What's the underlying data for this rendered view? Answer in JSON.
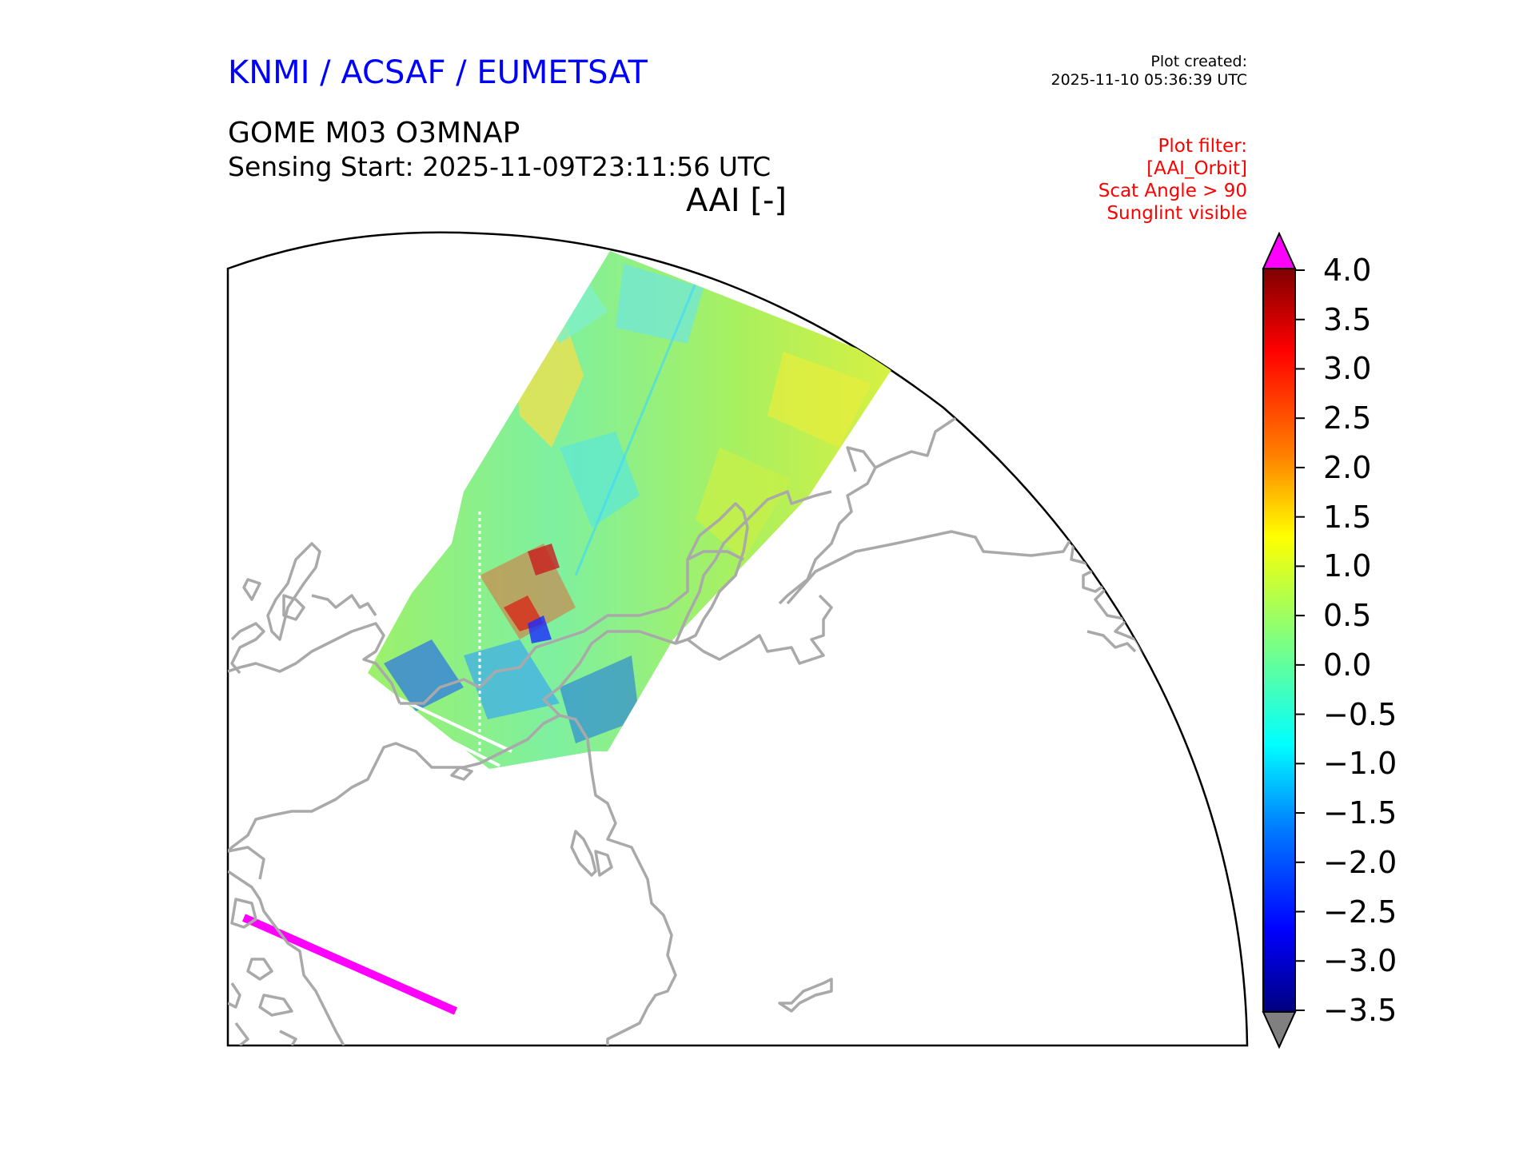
{
  "header": {
    "producer": "KNMI / ACSAF / EUMETSAT",
    "plot_created_label": "Plot created:",
    "plot_created_value": "2025-11-10 05:36:39 UTC",
    "product": "GOME M03 O3MNAP",
    "sensing_start": "Sensing Start: 2025-11-09T23:11:56 UTC",
    "variable": "AAI [-]"
  },
  "filter": {
    "title": "Plot filter:",
    "items": [
      "[AAI_Orbit]",
      "Scat Angle > 90",
      "Sunglint visible"
    ]
  },
  "colorbar": {
    "ticks": [
      "4.0",
      "3.5",
      "3.0",
      "2.5",
      "2.0",
      "1.5",
      "1.0",
      "0.5",
      "0.0",
      "−0.5",
      "−1.0",
      "−1.5",
      "−2.0",
      "−2.5",
      "−3.0",
      "−3.5"
    ],
    "min": -3.5,
    "max": 4.0,
    "over_color": "#ff00ff",
    "under_color": "#808080"
  },
  "colors": {
    "coastline": "#a9a9a9",
    "header_blue": "#0000ff",
    "filter_red": "#ff0000",
    "outlier_track": "#ff00ff"
  }
}
